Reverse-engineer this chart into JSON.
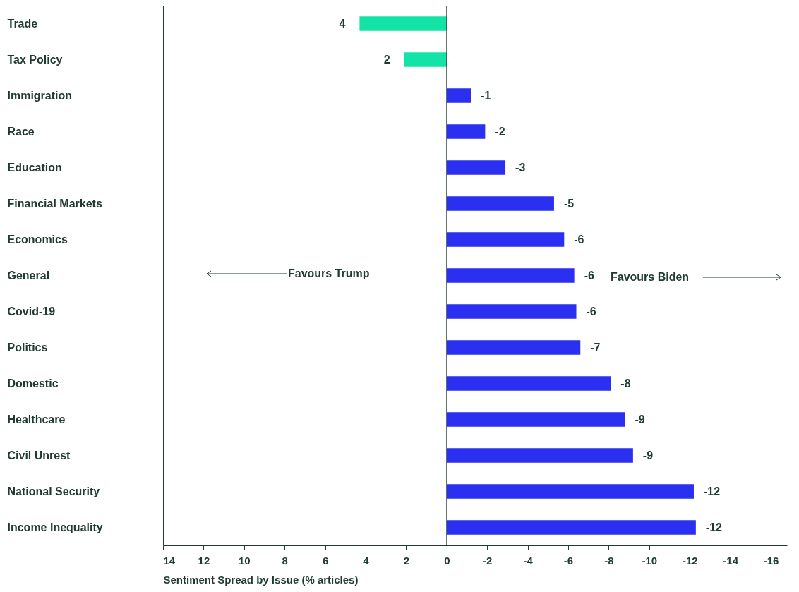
{
  "chart_data": {
    "type": "bar",
    "orientation": "horizontal",
    "xlabel": "Sentiment Spread by Issue (% articles)",
    "categories": [
      "Trade",
      "Tax Policy",
      "Immigration",
      "Race",
      "Education",
      "Financial Markets",
      "Economics",
      "General",
      "Covid-19",
      "Politics",
      "Domestic",
      "Healthcare",
      "Civil Unrest",
      "National Security",
      "Income Inequality"
    ],
    "values": [
      4.3,
      2.1,
      -1.2,
      -1.9,
      -2.9,
      -5.3,
      -5.8,
      -6.3,
      -6.4,
      -6.6,
      -8.1,
      -8.8,
      -9.2,
      -12.2,
      -12.3
    ],
    "value_labels": [
      "4",
      "2",
      "-1",
      "-2",
      "-3",
      "-5",
      "-6",
      "-6",
      "-6",
      "-7",
      "-8",
      "-9",
      "-9",
      "-12",
      "-12"
    ],
    "colors": [
      "#14e3a8",
      "#14e3a8",
      "#2a2ff0",
      "#2a2ff0",
      "#2a2ff0",
      "#2a2ff0",
      "#2a2ff0",
      "#2a2ff0",
      "#2a2ff0",
      "#2a2ff0",
      "#2a2ff0",
      "#2a2ff0",
      "#2a2ff0",
      "#2a2ff0",
      "#2a2ff0"
    ],
    "xlim": [
      14,
      -16.8
    ],
    "xticks": [
      14,
      12,
      10,
      8,
      6,
      4,
      2,
      0,
      -2,
      -4,
      -6,
      -8,
      -10,
      -12,
      -14,
      -16
    ],
    "ref_lines": [
      {
        "axis": "x",
        "value": 0,
        "color": "#1f3a2e"
      }
    ],
    "annotations": [
      "Favours Trump",
      "Favours Biden"
    ],
    "grid": false,
    "legend": false
  }
}
